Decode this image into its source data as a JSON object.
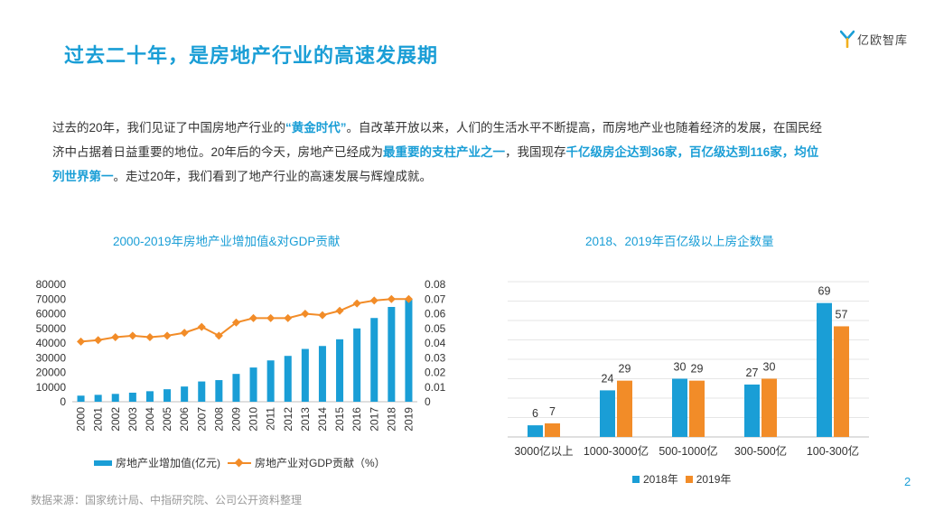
{
  "header": {
    "title": "过去二十年，是房地产行业的高速发展期",
    "logo_text": "亿欧智库"
  },
  "intro": {
    "s1": "过去的20年，我们见证了中国房地产行业的",
    "h1": "“黄金时代”",
    "s2": "。自改革开放以来，人们的生活水平不断提高，而房地产业也随着经济的发展，在国民经济中占据着日益重要的地位。20年后的今天，房地产已经成为",
    "h2": "最重要的支柱产业之一",
    "s3": "，我国现存",
    "h3": "千亿级房企达到36家，百亿级达到116家，均位列世界第一",
    "s4": "。走过20年，我们看到了地产行业的高速发展与辉煌成就。"
  },
  "colors": {
    "accent": "#1a9ed6",
    "orange": "#f28c28"
  },
  "chart_data": [
    {
      "type": "bar+line",
      "title": "2000-2019年房地产业增加值&对GDP贡献",
      "categories": [
        "2000",
        "2001",
        "2002",
        "2003",
        "2004",
        "2005",
        "2006",
        "2007",
        "2008",
        "2009",
        "2010",
        "2011",
        "2012",
        "2013",
        "2014",
        "2015",
        "2016",
        "2017",
        "2018",
        "2019"
      ],
      "series": [
        {
          "name": "房地产业增加值(亿元)",
          "kind": "bar",
          "axis": "left",
          "values": [
            4150,
            4700,
            5350,
            6170,
            7170,
            8520,
            10370,
            13810,
            14740,
            18970,
            23330,
            28170,
            31250,
            35990,
            38000,
            42570,
            49970,
            57090,
            64620,
            69630
          ]
        },
        {
          "name": "房地产业对GDP贡献（%）",
          "kind": "line",
          "axis": "right",
          "values": [
            0.041,
            0.042,
            0.044,
            0.045,
            0.044,
            0.045,
            0.047,
            0.051,
            0.045,
            0.054,
            0.057,
            0.057,
            0.057,
            0.06,
            0.059,
            0.062,
            0.067,
            0.069,
            0.07,
            0.07
          ]
        }
      ],
      "y_left": {
        "min": 0,
        "max": 80000,
        "ticks": [
          "0",
          "10000",
          "20000",
          "30000",
          "40000",
          "50000",
          "60000",
          "70000",
          "80000"
        ]
      },
      "y_right": {
        "min": 0,
        "max": 0.08,
        "ticks": [
          "0",
          "0.01",
          "0.02",
          "0.03",
          "0.04",
          "0.05",
          "0.06",
          "0.07",
          "0.08"
        ]
      },
      "legend": [
        "房地产业增加值(亿元)",
        "房地产业对GDP贡献（%）"
      ]
    },
    {
      "type": "bar",
      "title": "2018、2019年百亿级以上房企数量",
      "categories": [
        "3000亿以上",
        "1000-3000亿",
        "500-1000亿",
        "300-500亿",
        "100-300亿"
      ],
      "series": [
        {
          "name": "2018年",
          "values": [
            6,
            24,
            30,
            27,
            69
          ]
        },
        {
          "name": "2019年",
          "values": [
            7,
            29,
            29,
            30,
            57
          ]
        }
      ],
      "ylim": [
        0,
        80
      ]
    }
  ],
  "footer": {
    "source": "数据来源：国家统计局、中指研究院、公司公开资料整理",
    "page": "2"
  }
}
